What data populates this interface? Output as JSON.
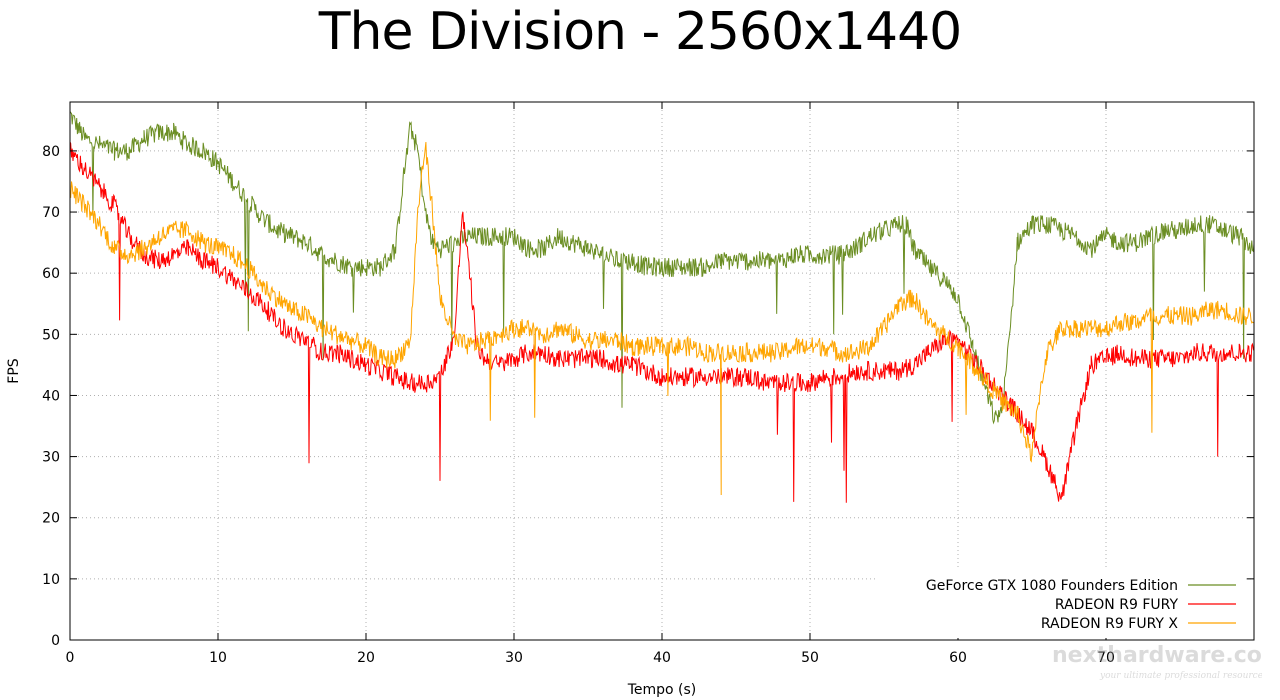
{
  "chart_data": {
    "type": "line",
    "title": "The Division - 2560x1440",
    "xlabel": "Tempo (s)",
    "ylabel": "FPS",
    "xlim": [
      0,
      80
    ],
    "ylim": [
      0,
      88
    ],
    "xticks": [
      0,
      10,
      20,
      30,
      40,
      50,
      60,
      70
    ],
    "yticks": [
      0,
      10,
      20,
      30,
      40,
      50,
      60,
      70,
      80
    ],
    "grid": true,
    "legend_position": "bottom-right",
    "series": [
      {
        "name": "GeForce GTX 1080 Founders Edition",
        "color": "#6b8e23",
        "points": [
          [
            0,
            86
          ],
          [
            1,
            82
          ],
          [
            2,
            81
          ],
          [
            3,
            80
          ],
          [
            4,
            80
          ],
          [
            5,
            82
          ],
          [
            6,
            83
          ],
          [
            7,
            83
          ],
          [
            8,
            81
          ],
          [
            9,
            80
          ],
          [
            10,
            78
          ],
          [
            11,
            75
          ],
          [
            12,
            72
          ],
          [
            13,
            69
          ],
          [
            14,
            67
          ],
          [
            15,
            66
          ],
          [
            16,
            65
          ],
          [
            17,
            63
          ],
          [
            18,
            62
          ],
          [
            19,
            61
          ],
          [
            20,
            61
          ],
          [
            21,
            61
          ],
          [
            22,
            64
          ],
          [
            22.5,
            75
          ],
          [
            23,
            84
          ],
          [
            23.5,
            80
          ],
          [
            24,
            70
          ],
          [
            24.5,
            65
          ],
          [
            25,
            64
          ],
          [
            26,
            65
          ],
          [
            27,
            66
          ],
          [
            28,
            66
          ],
          [
            29,
            66
          ],
          [
            30,
            66
          ],
          [
            31,
            64
          ],
          [
            32,
            64
          ],
          [
            33,
            66
          ],
          [
            34,
            65
          ],
          [
            35,
            64
          ],
          [
            36,
            63
          ],
          [
            37,
            62
          ],
          [
            38,
            62
          ],
          [
            39,
            61
          ],
          [
            40,
            61
          ],
          [
            41,
            61
          ],
          [
            42,
            61
          ],
          [
            43,
            61
          ],
          [
            44,
            62
          ],
          [
            45,
            62
          ],
          [
            46,
            62
          ],
          [
            47,
            62
          ],
          [
            48,
            62
          ],
          [
            49,
            63
          ],
          [
            50,
            63
          ],
          [
            51,
            63
          ],
          [
            52,
            63
          ],
          [
            53,
            64
          ],
          [
            54,
            66
          ],
          [
            55,
            67
          ],
          [
            56,
            68
          ],
          [
            56.5,
            68
          ],
          [
            57,
            64
          ],
          [
            58,
            61
          ],
          [
            59,
            59
          ],
          [
            60,
            56
          ],
          [
            61,
            48
          ],
          [
            62,
            40
          ],
          [
            62.5,
            36
          ],
          [
            63,
            38
          ],
          [
            63.5,
            50
          ],
          [
            64,
            65
          ],
          [
            65,
            68
          ],
          [
            66,
            68
          ],
          [
            67,
            67
          ],
          [
            68,
            66
          ],
          [
            69,
            64
          ],
          [
            70,
            66
          ],
          [
            71,
            65
          ],
          [
            72,
            65
          ],
          [
            73,
            66
          ],
          [
            74,
            67
          ],
          [
            75,
            67
          ],
          [
            76,
            68
          ],
          [
            77,
            68
          ],
          [
            78,
            67
          ],
          [
            79,
            66
          ],
          [
            80,
            64
          ]
        ]
      },
      {
        "name": "RADEON R9 FURY",
        "color": "#ff0000",
        "points": [
          [
            0,
            80
          ],
          [
            1,
            77
          ],
          [
            2,
            74
          ],
          [
            3,
            71
          ],
          [
            4,
            66
          ],
          [
            5,
            63
          ],
          [
            6,
            62
          ],
          [
            7,
            63
          ],
          [
            8,
            64
          ],
          [
            9,
            62
          ],
          [
            10,
            61
          ],
          [
            11,
            59
          ],
          [
            12,
            57
          ],
          [
            13,
            55
          ],
          [
            14,
            52
          ],
          [
            15,
            50
          ],
          [
            16,
            49
          ],
          [
            17,
            47
          ],
          [
            18,
            47
          ],
          [
            19,
            46
          ],
          [
            20,
            45
          ],
          [
            21,
            44
          ],
          [
            22,
            43
          ],
          [
            23,
            42
          ],
          [
            24,
            42
          ],
          [
            25,
            43
          ],
          [
            26,
            50
          ],
          [
            26.5,
            70
          ],
          [
            27,
            60
          ],
          [
            27.5,
            48
          ],
          [
            28,
            46
          ],
          [
            29,
            45
          ],
          [
            30,
            46
          ],
          [
            31,
            47
          ],
          [
            32,
            47
          ],
          [
            33,
            46
          ],
          [
            34,
            46
          ],
          [
            35,
            46
          ],
          [
            36,
            46
          ],
          [
            37,
            45
          ],
          [
            38,
            45
          ],
          [
            39,
            44
          ],
          [
            40,
            43
          ],
          [
            41,
            43
          ],
          [
            42,
            43
          ],
          [
            43,
            43
          ],
          [
            44,
            43
          ],
          [
            45,
            43
          ],
          [
            46,
            43
          ],
          [
            47,
            42
          ],
          [
            48,
            42
          ],
          [
            49,
            42
          ],
          [
            50,
            42
          ],
          [
            51,
            43
          ],
          [
            52,
            43
          ],
          [
            53,
            44
          ],
          [
            54,
            44
          ],
          [
            55,
            44
          ],
          [
            56,
            44
          ],
          [
            57,
            45
          ],
          [
            58,
            47
          ],
          [
            59,
            49
          ],
          [
            60,
            49
          ],
          [
            61,
            46
          ],
          [
            62,
            43
          ],
          [
            63,
            40
          ],
          [
            64,
            37
          ],
          [
            65,
            34
          ],
          [
            66,
            29
          ],
          [
            67,
            23
          ],
          [
            68,
            35
          ],
          [
            69,
            45
          ],
          [
            70,
            46
          ],
          [
            71,
            47
          ],
          [
            72,
            46
          ],
          [
            73,
            46
          ],
          [
            74,
            46
          ],
          [
            75,
            46
          ],
          [
            76,
            47
          ],
          [
            77,
            47
          ],
          [
            78,
            47
          ],
          [
            79,
            47
          ],
          [
            80,
            47
          ]
        ]
      },
      {
        "name": "RADEON R9 FURY X",
        "color": "#ffa500",
        "points": [
          [
            0,
            74
          ],
          [
            1,
            71
          ],
          [
            2,
            68
          ],
          [
            3,
            64
          ],
          [
            4,
            63
          ],
          [
            5,
            64
          ],
          [
            6,
            66
          ],
          [
            7,
            67
          ],
          [
            8,
            67
          ],
          [
            9,
            65
          ],
          [
            10,
            64
          ],
          [
            11,
            63
          ],
          [
            12,
            61
          ],
          [
            13,
            58
          ],
          [
            14,
            56
          ],
          [
            15,
            54
          ],
          [
            16,
            53
          ],
          [
            17,
            51
          ],
          [
            18,
            50
          ],
          [
            19,
            49
          ],
          [
            20,
            48
          ],
          [
            21,
            46
          ],
          [
            22,
            46
          ],
          [
            23,
            49
          ],
          [
            23.5,
            70
          ],
          [
            24,
            81
          ],
          [
            24.5,
            70
          ],
          [
            25,
            56
          ],
          [
            26,
            49
          ],
          [
            27,
            48
          ],
          [
            28,
            49
          ],
          [
            29,
            50
          ],
          [
            30,
            51
          ],
          [
            31,
            51
          ],
          [
            32,
            50
          ],
          [
            33,
            51
          ],
          [
            34,
            50
          ],
          [
            35,
            49
          ],
          [
            36,
            49
          ],
          [
            37,
            49
          ],
          [
            38,
            48
          ],
          [
            39,
            48
          ],
          [
            40,
            48
          ],
          [
            41,
            48
          ],
          [
            42,
            48
          ],
          [
            43,
            47
          ],
          [
            44,
            47
          ],
          [
            45,
            47
          ],
          [
            46,
            47
          ],
          [
            47,
            47
          ],
          [
            48,
            47
          ],
          [
            49,
            48
          ],
          [
            50,
            48
          ],
          [
            51,
            48
          ],
          [
            52,
            47
          ],
          [
            53,
            47
          ],
          [
            54,
            48
          ],
          [
            55,
            51
          ],
          [
            56,
            55
          ],
          [
            57,
            56
          ],
          [
            57.5,
            54
          ],
          [
            58,
            52
          ],
          [
            59,
            50
          ],
          [
            60,
            48
          ],
          [
            61,
            45
          ],
          [
            62,
            42
          ],
          [
            63,
            39
          ],
          [
            64,
            37
          ],
          [
            65,
            30
          ],
          [
            65.5,
            40
          ],
          [
            66,
            47
          ],
          [
            67,
            51
          ],
          [
            68,
            51
          ],
          [
            69,
            51
          ],
          [
            70,
            51
          ],
          [
            71,
            52
          ],
          [
            72,
            52
          ],
          [
            73,
            53
          ],
          [
            74,
            53
          ],
          [
            75,
            53
          ],
          [
            76,
            53
          ],
          [
            77,
            54
          ],
          [
            78,
            54
          ],
          [
            79,
            53
          ],
          [
            80,
            53
          ]
        ]
      }
    ]
  },
  "watermark": {
    "text": "nexthardware.com",
    "subtext": "your ultimate professional resource"
  }
}
